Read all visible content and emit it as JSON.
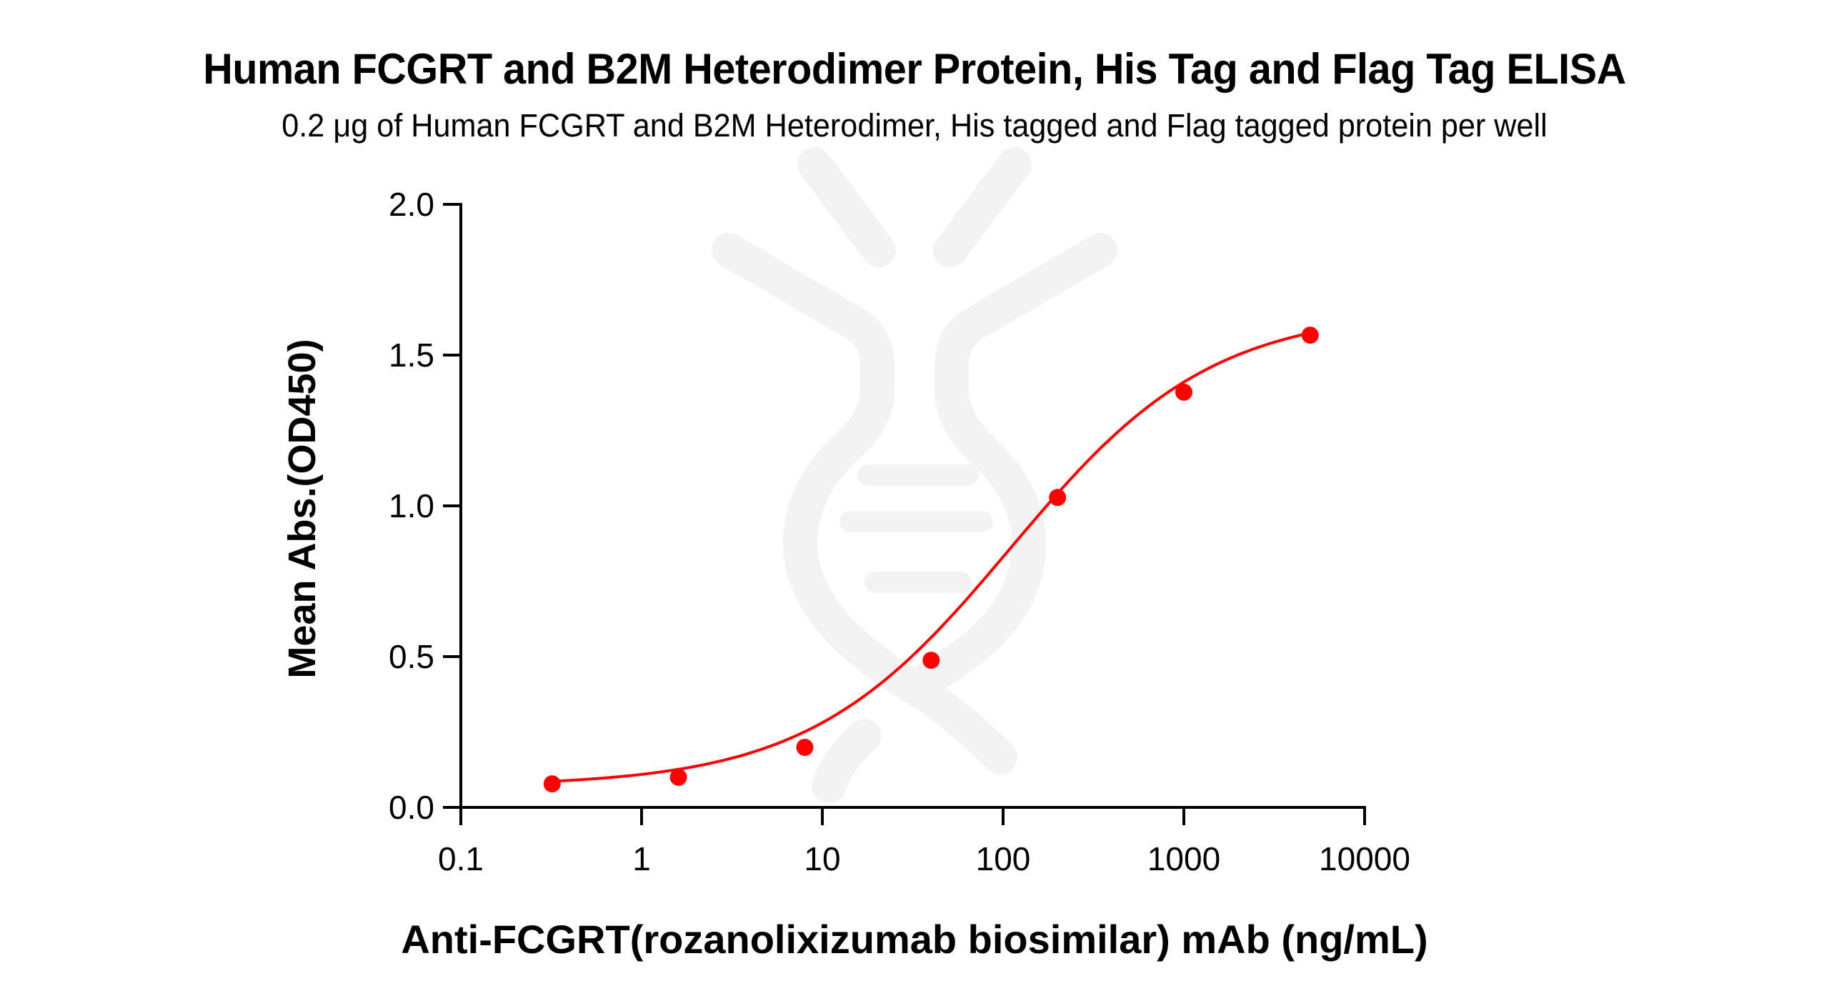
{
  "chart": {
    "title": "Human FCGRT and B2M Heterodimer Protein, His Tag and Flag Tag ELISA",
    "subtitle": "0.2 μg of Human FCGRT and B2M Heterodimer, His tagged and Flag tagged protein per well",
    "xlabel": "Anti-FCGRT(rozanolixizumab biosimilar) mAb (ng/mL)",
    "ylabel": "Mean Abs.(OD450)",
    "series_color": "#ff0000",
    "watermark_color": "#f3f3f3"
  },
  "chart_data": {
    "type": "scatter",
    "title": "Human FCGRT and B2M Heterodimer Protein, His Tag and Flag Tag ELISA",
    "subtitle": "0.2 μg of Human FCGRT and B2M Heterodimer, His tagged and Flag tagged protein per well",
    "xlabel": "Anti-FCGRT(rozanolixizumab biosimilar) mAb (ng/mL)",
    "ylabel": "Mean Abs.(OD450)",
    "xscale": "log",
    "xlim": [
      0.1,
      10000
    ],
    "ylim": [
      0.0,
      2.0
    ],
    "x_ticks": [
      "0.1",
      "1",
      "10",
      "100",
      "1000",
      "10000"
    ],
    "y_ticks": [
      "0.0",
      "0.5",
      "1.0",
      "1.5",
      "2.0"
    ],
    "grid": false,
    "legend": null,
    "fit": "4-parameter logistic curve (red line)",
    "series": [
      {
        "name": "Anti-FCGRT(rozanolixizumab biosimilar) mAb",
        "color": "#ff0000",
        "x": [
          0.32,
          1.6,
          8,
          40,
          200,
          1000,
          5000
        ],
        "y": [
          0.078,
          0.1,
          0.199,
          0.488,
          1.028,
          1.377,
          1.566
        ]
      }
    ]
  }
}
